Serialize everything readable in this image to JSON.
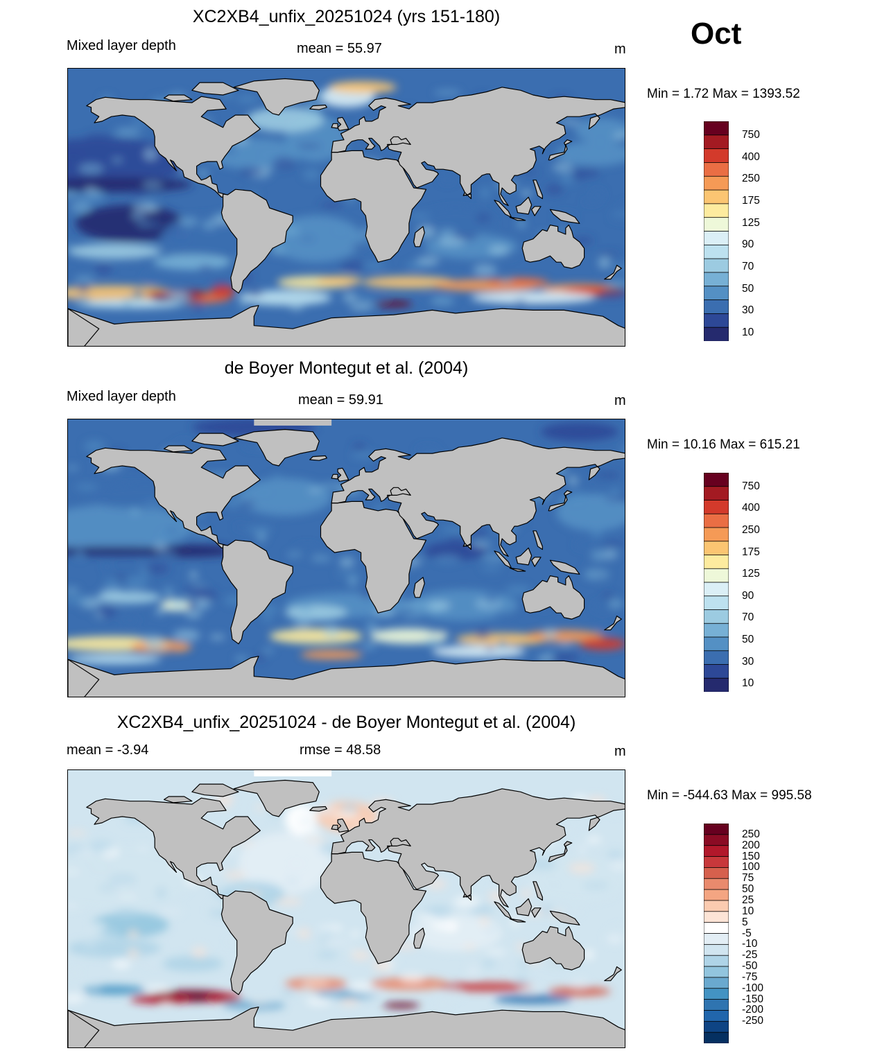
{
  "month": "Oct",
  "panels": [
    {
      "id": "model",
      "title": "XC2XB4_unfix_20251024 (yrs 151-180)",
      "left_text": "Mixed layer depth",
      "center_text": "mean =  55.97",
      "units": "m",
      "minmax": "Min =   1.72 Max = 1393.52",
      "colorbar_labels": [
        "750",
        "400",
        "250",
        "175",
        "125",
        "90",
        "70",
        "50",
        "30",
        "10"
      ],
      "field": "model"
    },
    {
      "id": "obs",
      "title": "de Boyer Montegut et al. (2004)",
      "left_text": "Mixed layer depth",
      "center_text": "mean =  59.91",
      "units": "m",
      "minmax": "Min =  10.16 Max = 615.21",
      "colorbar_labels": [
        "750",
        "400",
        "250",
        "175",
        "125",
        "90",
        "70",
        "50",
        "30",
        "10"
      ],
      "field": "obs"
    },
    {
      "id": "diff",
      "title": "XC2XB4_unfix_20251024 - de Boyer Montegut et al. (2004)",
      "left_text": "mean =  -3.94",
      "center_text": "rmse =  48.58",
      "units": "m",
      "minmax": "Min = -544.63 Max = 995.58",
      "colorbar_labels": [
        "250",
        "200",
        "150",
        "100",
        "75",
        "50",
        "25",
        "10",
        "5",
        "-5",
        "-10",
        "-25",
        "-50",
        "-75",
        "-100",
        "-150",
        "-200",
        "-250"
      ],
      "field": "diff"
    }
  ],
  "colors": {
    "land": "#c0c0c0",
    "seq_palette": [
      "#67001f",
      "#a31a22",
      "#d33a2b",
      "#ea6e44",
      "#f59a56",
      "#fbc572",
      "#fdeb9f",
      "#eef8d9",
      "#dbeff6",
      "#bde1ef",
      "#9ccbe1",
      "#77b0d5",
      "#5490c4",
      "#3b6eb0",
      "#2d4897",
      "#252a6e"
    ],
    "div_palette": [
      "#67001f",
      "#8b0b24",
      "#b2182b",
      "#c8383b",
      "#d6604d",
      "#e98a6d",
      "#f4a582",
      "#fbcbb0",
      "#fde4d6",
      "#ffffff",
      "#e3eef5",
      "#d1e5f0",
      "#afd4e7",
      "#92c5de",
      "#6aa9cf",
      "#4393c3",
      "#2f74b0",
      "#2166ac",
      "#0e4484",
      "#053061"
    ]
  }
}
